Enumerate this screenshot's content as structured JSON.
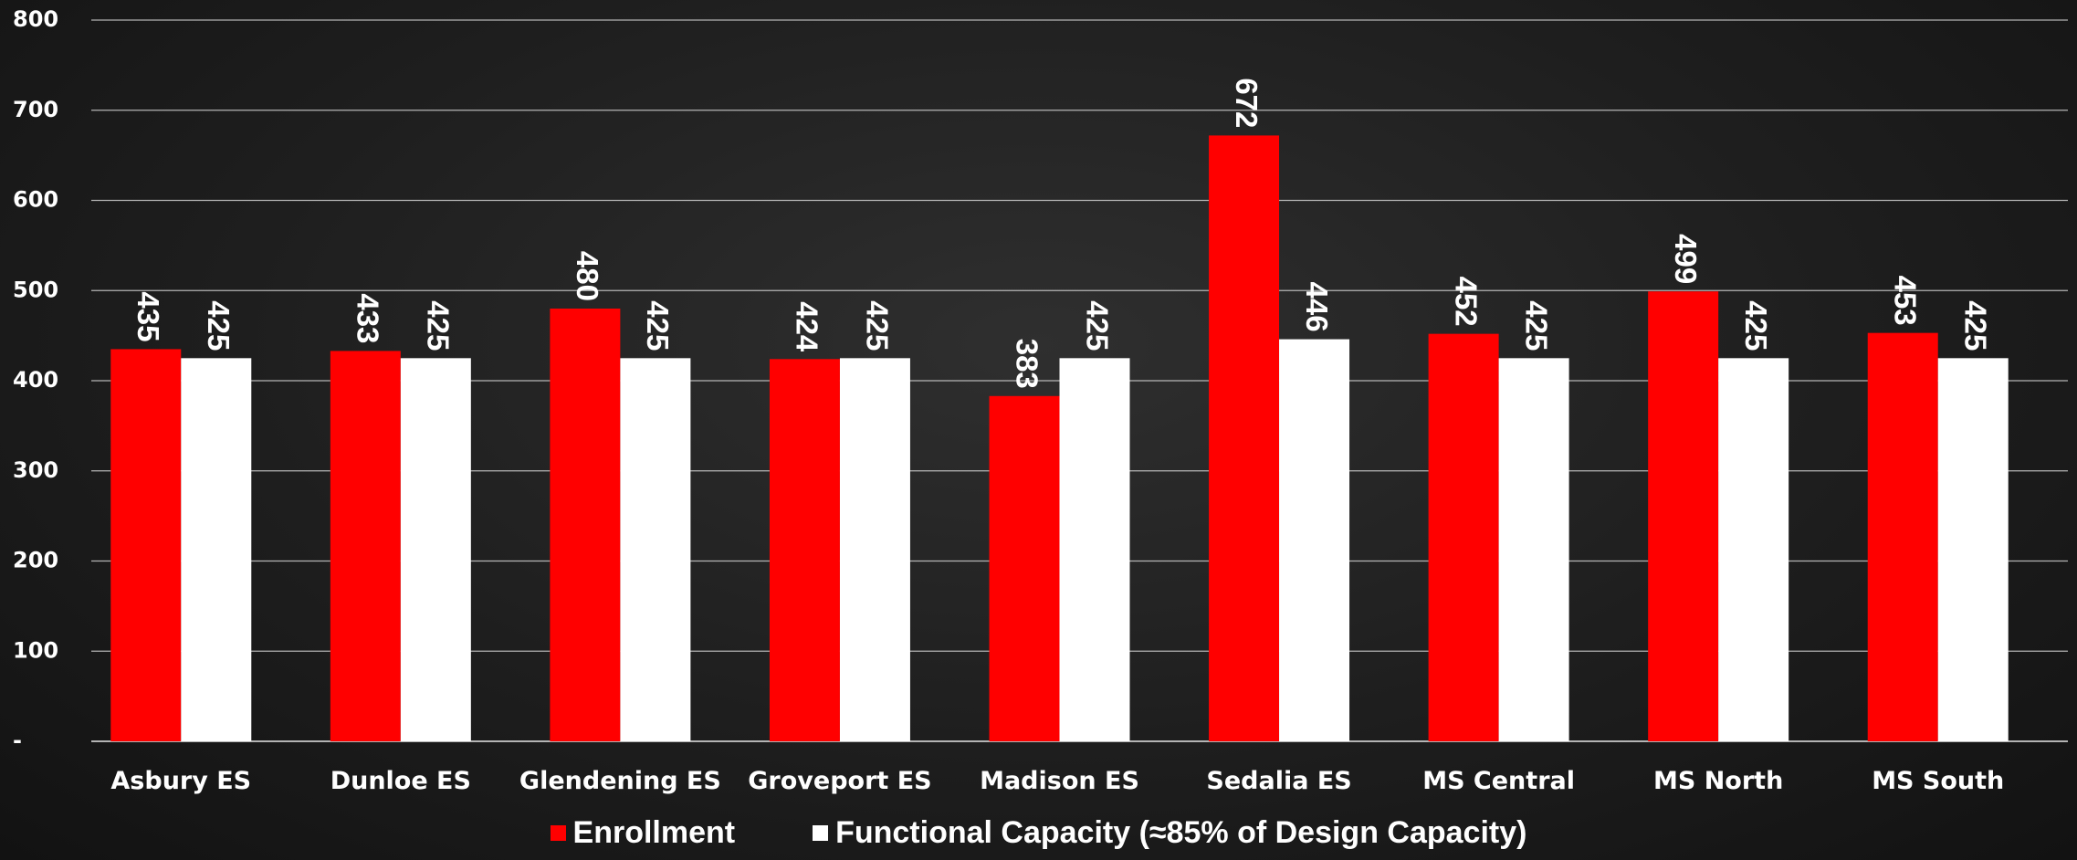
{
  "colors": {
    "enrollment": "#ff0000",
    "capacity": "#ffffff",
    "background": "#1e1e1e",
    "gridline": "#cfcfcf",
    "text": "#ffffff"
  },
  "chart_data": {
    "type": "bar",
    "title": "",
    "xlabel": "",
    "ylabel": "",
    "ylim": [
      0,
      800
    ],
    "y_ticks": [
      0,
      100,
      200,
      300,
      400,
      500,
      600,
      700,
      800
    ],
    "y_tick_labels": [
      "-",
      "100",
      "200",
      "300",
      "400",
      "500",
      "600",
      "700",
      "800"
    ],
    "grid": true,
    "legend_position": "bottom",
    "categories": [
      "Asbury ES",
      "Dunloe ES",
      "Glendening ES",
      "Groveport ES",
      "Madison ES",
      "Sedalia ES",
      "MS Central",
      "MS North",
      "MS South"
    ],
    "series": [
      {
        "name": "Enrollment",
        "color": "#ff0000",
        "values": [
          435,
          433,
          480,
          424,
          383,
          672,
          452,
          499,
          453
        ]
      },
      {
        "name": "Functional Capacity (≈85% of Design Capacity)",
        "color": "#ffffff",
        "values": [
          425,
          425,
          425,
          425,
          425,
          446,
          425,
          425,
          425
        ]
      }
    ]
  }
}
